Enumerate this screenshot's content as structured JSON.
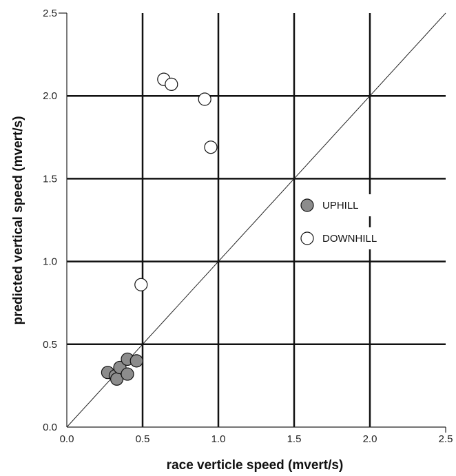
{
  "chart_data": {
    "type": "scatter",
    "title": "",
    "xlabel": "race verticle speed (mvert/s)",
    "ylabel": "predicted vertical speed (mvert/s)",
    "xlim": [
      0,
      2.5
    ],
    "ylim": [
      0,
      2.5
    ],
    "xticks": [
      "0.0",
      "0.5",
      "1.0",
      "1.5",
      "2.0",
      "2.5"
    ],
    "yticks": [
      "0.0",
      "0.5",
      "1.0",
      "1.5",
      "2.0",
      "2.5"
    ],
    "grid": true,
    "reference_line": "y = x",
    "legend_position": "right-center",
    "series": [
      {
        "name": "UPHILL",
        "color": "#8c8c8c",
        "points": [
          {
            "x": 0.27,
            "y": 0.33
          },
          {
            "x": 0.32,
            "y": 0.31
          },
          {
            "x": 0.33,
            "y": 0.29
          },
          {
            "x": 0.35,
            "y": 0.36
          },
          {
            "x": 0.4,
            "y": 0.41
          },
          {
            "x": 0.4,
            "y": 0.32
          },
          {
            "x": 0.46,
            "y": 0.4
          }
        ]
      },
      {
        "name": "DOWNHILL",
        "color": "#ffffff",
        "points": [
          {
            "x": 0.49,
            "y": 0.86
          },
          {
            "x": 0.64,
            "y": 2.1
          },
          {
            "x": 0.69,
            "y": 2.07
          },
          {
            "x": 0.91,
            "y": 1.98
          },
          {
            "x": 0.95,
            "y": 1.69
          }
        ]
      }
    ]
  }
}
